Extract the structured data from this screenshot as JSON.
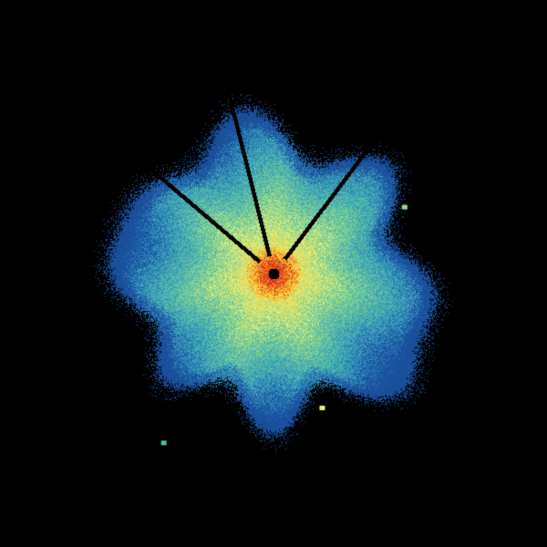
{
  "background": "#000000",
  "colormap": [
    "#1a4f9c",
    "#2a7fb8",
    "#3fa8b8",
    "#5cc2a0",
    "#9bd88a",
    "#e6f07a",
    "#f7d03c",
    "#f08a1c",
    "#d7301f"
  ],
  "radar_site_color": "#000000",
  "blocked_sector_colors": "#000000",
  "isolated_echoes": [
    {
      "color": "#9bd88a",
      "azimuth_deg": 63,
      "range_fraction": 0.95
    },
    {
      "color": "#e6f07a",
      "azimuth_deg": 160,
      "range_fraction": 0.92
    },
    {
      "color": "#5cc2a0",
      "azimuth_deg": 213,
      "range_fraction": 1.3
    }
  ]
}
